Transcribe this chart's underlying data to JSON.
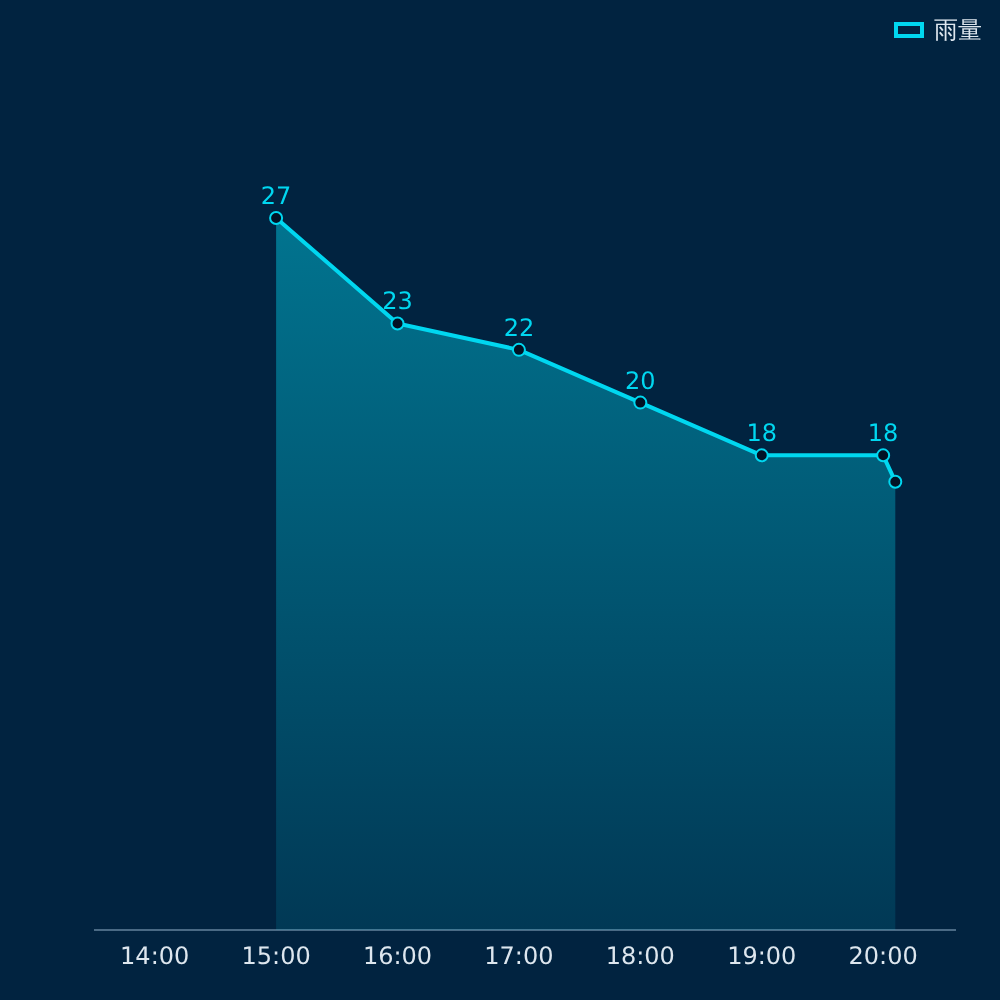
{
  "chart_data": {
    "type": "area",
    "x": [
      15,
      16,
      17,
      18,
      19,
      20,
      20.1
    ],
    "series": [
      {
        "name": "雨量",
        "color": "#00d7f0",
        "values": [
          27,
          23,
          22,
          20,
          18,
          18,
          17
        ],
        "value_labels": [
          "27",
          "23",
          "22",
          "20",
          "18",
          "18",
          null
        ]
      }
    ],
    "xlim": [
      13.5,
      20.6
    ],
    "xticks": [
      {
        "value": 14,
        "label": "14:00"
      },
      {
        "value": 15,
        "label": "15:00"
      },
      {
        "value": 16,
        "label": "16:00"
      },
      {
        "value": 17,
        "label": "17:00"
      },
      {
        "value": 18,
        "label": "18:00"
      },
      {
        "value": 19,
        "label": "19:00"
      },
      {
        "value": 20,
        "label": "20:00"
      }
    ],
    "tick_labels": "x",
    "grid": false,
    "legend": "top right",
    "marker": "circle",
    "line_style": "solid"
  }
}
